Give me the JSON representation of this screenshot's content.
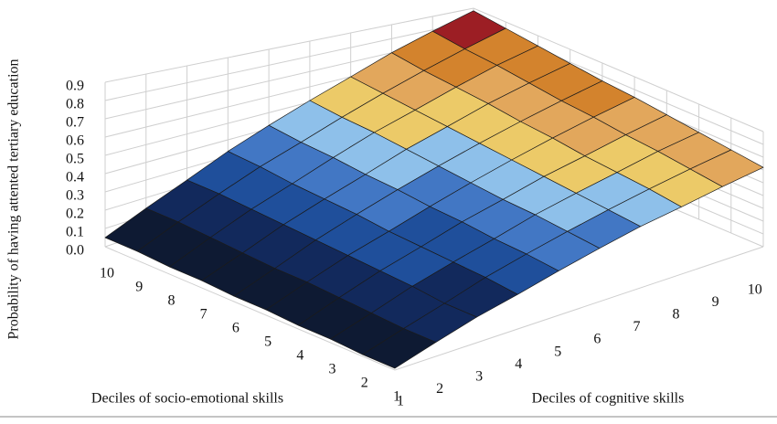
{
  "chart_data": {
    "type": "surface",
    "xlabel": "Deciles of cognitive skills",
    "ylabel": "Deciles of socio-emotional skills",
    "zlabel": "Probability of having attented tertiary education",
    "x_categories": [
      1,
      2,
      3,
      4,
      5,
      6,
      7,
      8,
      9,
      10
    ],
    "y_categories": [
      1,
      2,
      3,
      4,
      5,
      6,
      7,
      8,
      9,
      10
    ],
    "values": [
      [
        0.01,
        0.08,
        0.15,
        0.21,
        0.28,
        0.35,
        0.42,
        0.48,
        0.55,
        0.62
      ],
      [
        0.01,
        0.08,
        0.15,
        0.23,
        0.3,
        0.37,
        0.44,
        0.51,
        0.58,
        0.65
      ],
      [
        0.02,
        0.09,
        0.17,
        0.24,
        0.31,
        0.39,
        0.46,
        0.53,
        0.61,
        0.68
      ],
      [
        0.02,
        0.1,
        0.18,
        0.25,
        0.33,
        0.4,
        0.48,
        0.55,
        0.63,
        0.71
      ],
      [
        0.03,
        0.11,
        0.19,
        0.26,
        0.34,
        0.42,
        0.5,
        0.58,
        0.66,
        0.74
      ],
      [
        0.03,
        0.11,
        0.2,
        0.28,
        0.36,
        0.44,
        0.52,
        0.6,
        0.68,
        0.76
      ],
      [
        0.04,
        0.12,
        0.21,
        0.29,
        0.37,
        0.46,
        0.54,
        0.63,
        0.71,
        0.79
      ],
      [
        0.04,
        0.13,
        0.22,
        0.3,
        0.39,
        0.48,
        0.56,
        0.65,
        0.74,
        0.82
      ],
      [
        0.05,
        0.14,
        0.23,
        0.32,
        0.4,
        0.49,
        0.58,
        0.67,
        0.76,
        0.85
      ],
      [
        0.05,
        0.14,
        0.23,
        0.33,
        0.42,
        0.51,
        0.6,
        0.7,
        0.79,
        0.88
      ]
    ],
    "zlim": [
      0,
      0.9
    ],
    "zticks": [
      {
        "value": 0,
        "label": "0.0"
      },
      0.1,
      0.2,
      0.3,
      0.4,
      0.5,
      0.6,
      0.7,
      0.8,
      0.9
    ],
    "band_colors": [
      "#0e1a33",
      "#12295c",
      "#1f4f9b",
      "#4277c4",
      "#8ec0ea",
      "#ecca68",
      "#e2a75c",
      "#d3832d",
      "#9c1e24"
    ],
    "grid": true
  }
}
